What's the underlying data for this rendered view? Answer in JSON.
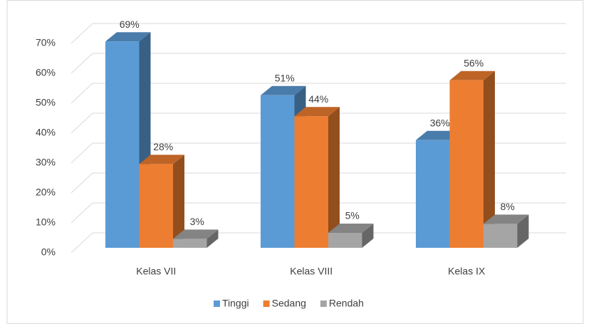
{
  "chart_data": {
    "type": "bar3d",
    "categories": [
      "Kelas VII",
      "Kelas VIII",
      "Kelas IX"
    ],
    "series": [
      {
        "name": "Tinggi",
        "color": "#5b9bd5",
        "values": [
          69,
          51,
          36
        ],
        "value_labels": [
          "69%",
          "51%",
          "36%"
        ]
      },
      {
        "name": "Sedang",
        "color": "#ed7d31",
        "values": [
          28,
          44,
          56
        ],
        "value_labels": [
          "28%",
          "44%",
          "56%"
        ]
      },
      {
        "name": "Rendah",
        "color": "#a5a5a5",
        "values": [
          3,
          5,
          8
        ],
        "value_labels": [
          "3%",
          "5%",
          "8%"
        ]
      }
    ],
    "ylim": [
      0,
      70
    ],
    "yticks": [
      {
        "value": 0,
        "label": "0%"
      },
      {
        "value": 10,
        "label": "10%"
      },
      {
        "value": 20,
        "label": "20%"
      },
      {
        "value": 30,
        "label": "30%"
      },
      {
        "value": 40,
        "label": "40%"
      },
      {
        "value": 50,
        "label": "50%"
      },
      {
        "value": 60,
        "label": "60%"
      },
      {
        "value": 70,
        "label": "70%"
      }
    ],
    "grid": true,
    "legend": "bottom"
  }
}
